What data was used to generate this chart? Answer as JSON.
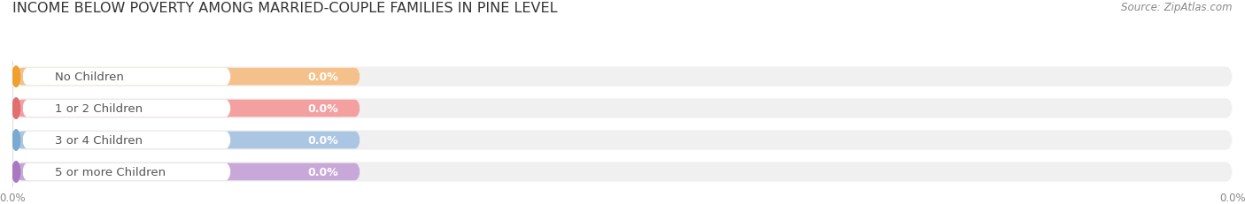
{
  "title": "INCOME BELOW POVERTY AMONG MARRIED-COUPLE FAMILIES IN PINE LEVEL",
  "source": "Source: ZipAtlas.com",
  "categories": [
    "No Children",
    "1 or 2 Children",
    "3 or 4 Children",
    "5 or more Children"
  ],
  "values": [
    0.0,
    0.0,
    0.0,
    0.0
  ],
  "bar_colors": [
    "#f5c18a",
    "#f4a0a0",
    "#aac6e2",
    "#c8a8d8"
  ],
  "bar_bg_color": "#f0f0f0",
  "circle_colors": [
    "#f0a030",
    "#e07070",
    "#7aaad0",
    "#a878c0"
  ],
  "text_color_label": "#555555",
  "text_color_value": "#ffffff",
  "background_color": "#ffffff",
  "grid_color": "#dddddd",
  "title_fontsize": 11.5,
  "source_fontsize": 8.5,
  "label_fontsize": 9.5,
  "value_fontsize": 9,
  "tick_fontsize": 8.5
}
